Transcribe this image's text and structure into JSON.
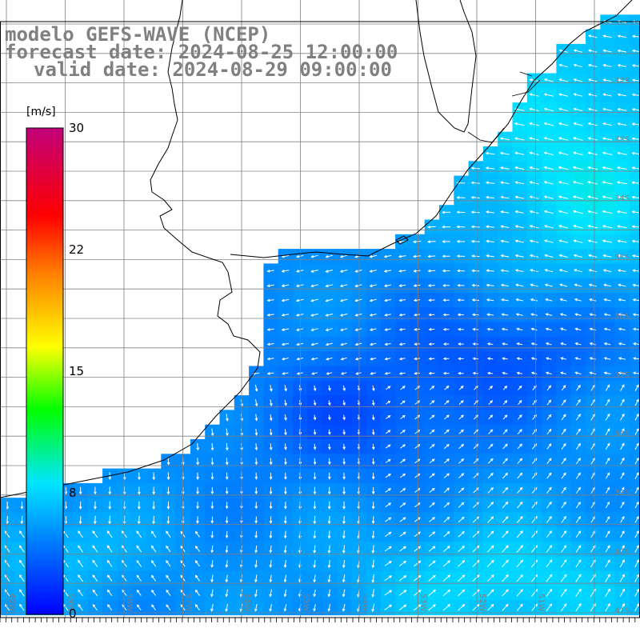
{
  "titles": {
    "line1": "modelo GEFS-WAVE (NCEP)",
    "line2": "forecast date: 2024-08-25 12:00:00",
    "line3": "valid date: 2024-08-29 09:00:00"
  },
  "colorbar": {
    "unit": "[m/s]",
    "ticks": [
      "30",
      "22",
      "15",
      "8",
      "0"
    ],
    "tick_values": [
      30,
      22,
      15,
      8,
      0
    ],
    "range": [
      0,
      30
    ],
    "colors": [
      "#0000ff",
      "#00ccff",
      "#00ff00",
      "#ffff00",
      "#ff8000",
      "#ff0000",
      "#cc0066"
    ]
  },
  "map": {
    "land_color": "#ffffff",
    "coast_color": "#000000",
    "grid_color": "#808080",
    "lat_labels": [
      "32S",
      "33S",
      "34S",
      "35S",
      "36S",
      "37S",
      "38S",
      "39S",
      "40S",
      "41S"
    ],
    "lon_labels": [
      "60W",
      "59W",
      "58W",
      "57W",
      "56W",
      "55W",
      "54W",
      "53W",
      "52W",
      "51W"
    ]
  }
}
